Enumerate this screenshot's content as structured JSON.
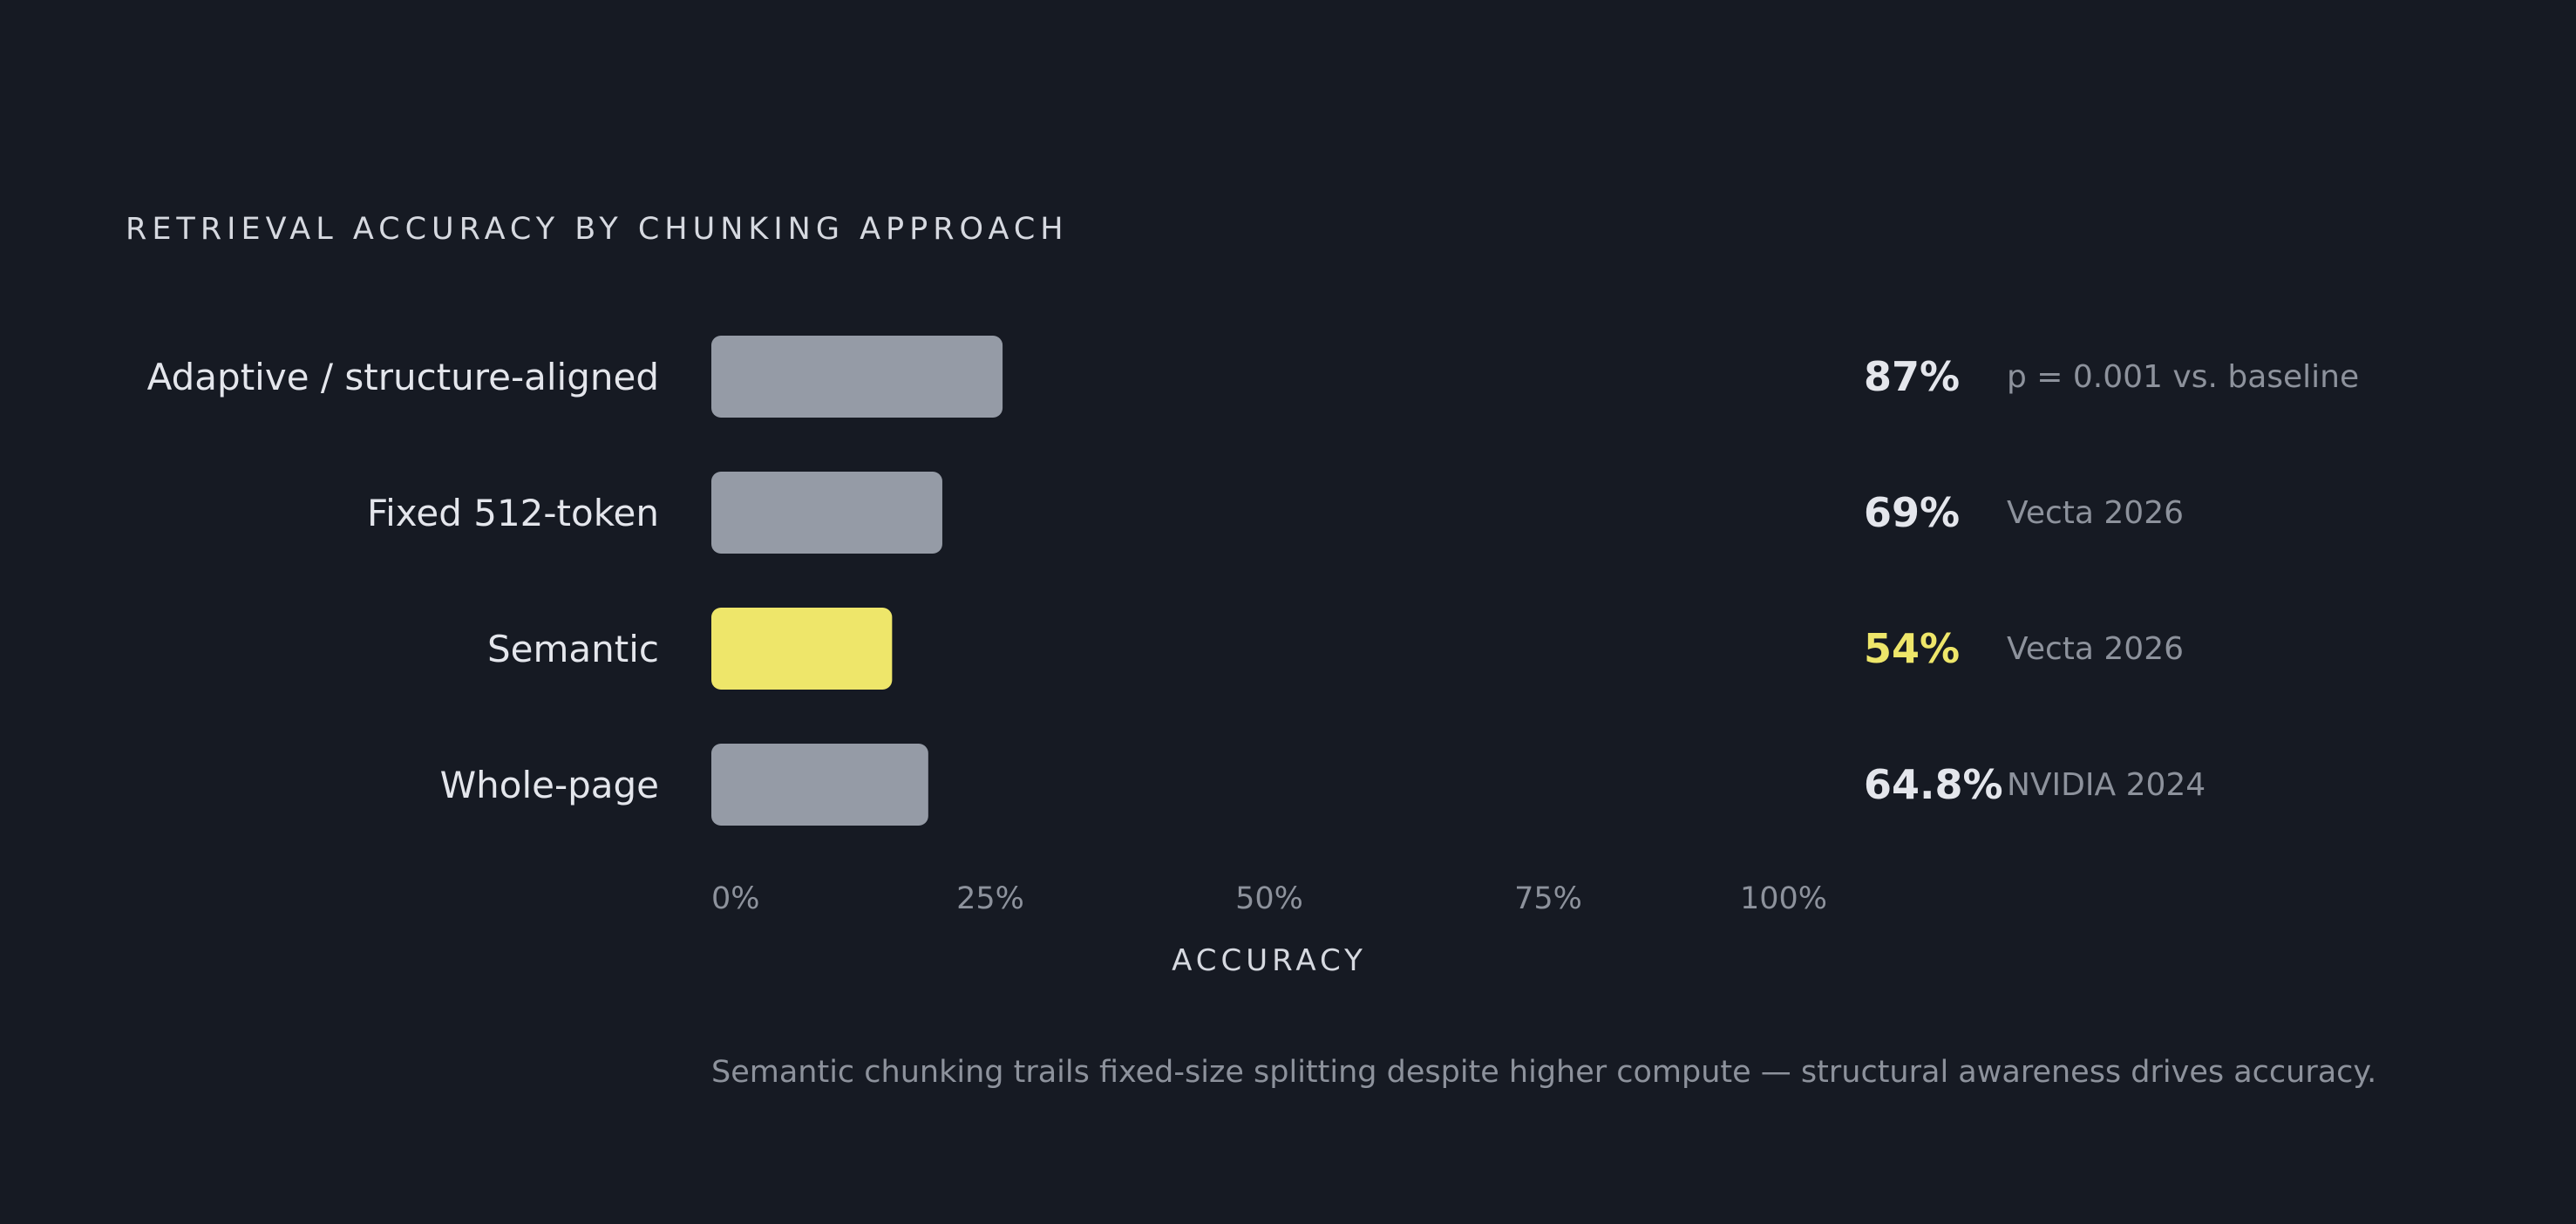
{
  "chart_data": {
    "type": "bar",
    "orientation": "horizontal",
    "title": "RETRIEVAL ACCURACY BY CHUNKING APPROACH",
    "xlabel": "ACCURACY",
    "xlim": [
      0,
      100
    ],
    "x_ticks": [
      "0%",
      "25%",
      "50%",
      "75%",
      "100%"
    ],
    "x_tick_values": [
      0,
      25,
      50,
      75,
      100
    ],
    "grid": false,
    "legend": "none",
    "categories": [
      "Adaptive / structure-aligned",
      "Fixed 512-token",
      "Semantic",
      "Whole-page"
    ],
    "values": [
      87,
      69,
      54,
      64.8
    ],
    "value_labels": [
      "87%",
      "69%",
      "54%",
      "64.8%"
    ],
    "sources": [
      "p = 0.001 vs. baseline",
      "Vecta 2026",
      "Vecta 2026",
      "NVIDIA 2024"
    ],
    "highlight": [
      false,
      false,
      true,
      false
    ]
  },
  "footnote": "Semantic chunking trails fixed-size splitting despite higher compute — structural awareness drives accuracy.",
  "colors": {
    "background": "#161a23",
    "bar": "#959ba6",
    "highlight": "#eee66a",
    "label": "#e4e6ec",
    "value": "#e4e6ec",
    "source": "#8d929c",
    "tick": "#8d929c",
    "axis_label": "#d6d9e0"
  }
}
